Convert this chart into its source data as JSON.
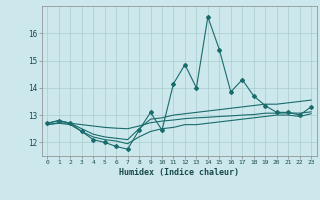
{
  "title": "",
  "xlabel": "Humidex (Indice chaleur)",
  "bg_color": "#cce8ed",
  "grid_color": "#aacccc",
  "line_color": "#1a6b6b",
  "xlim": [
    -0.5,
    23.5
  ],
  "ylim": [
    11.5,
    17.0
  ],
  "yticks": [
    12,
    13,
    14,
    15,
    16
  ],
  "xticks": [
    0,
    1,
    2,
    3,
    4,
    5,
    6,
    7,
    8,
    9,
    10,
    11,
    12,
    13,
    14,
    15,
    16,
    17,
    18,
    19,
    20,
    21,
    22,
    23
  ],
  "series_main": [
    12.7,
    12.8,
    12.7,
    12.4,
    12.1,
    12.0,
    11.85,
    11.75,
    12.45,
    13.1,
    12.45,
    14.15,
    14.85,
    14.0,
    16.6,
    15.4,
    13.85,
    14.3,
    13.7,
    13.35,
    13.1,
    13.1,
    13.0,
    13.3
  ],
  "series_upper": [
    12.7,
    12.8,
    12.7,
    12.5,
    12.3,
    12.2,
    12.15,
    12.1,
    12.5,
    12.85,
    12.9,
    13.0,
    13.05,
    13.1,
    13.15,
    13.2,
    13.25,
    13.3,
    13.35,
    13.4,
    13.4,
    13.45,
    13.5,
    13.55
  ],
  "series_lower": [
    12.65,
    12.7,
    12.65,
    12.4,
    12.2,
    12.1,
    12.05,
    11.95,
    12.2,
    12.4,
    12.5,
    12.55,
    12.65,
    12.65,
    12.7,
    12.75,
    12.8,
    12.85,
    12.9,
    12.95,
    13.0,
    13.0,
    12.95,
    13.05
  ],
  "series_flat": [
    12.65,
    12.72,
    12.7,
    12.65,
    12.6,
    12.55,
    12.52,
    12.5,
    12.6,
    12.72,
    12.78,
    12.82,
    12.87,
    12.9,
    12.92,
    12.95,
    12.97,
    13.0,
    13.02,
    13.07,
    13.07,
    13.08,
    13.07,
    13.12
  ]
}
